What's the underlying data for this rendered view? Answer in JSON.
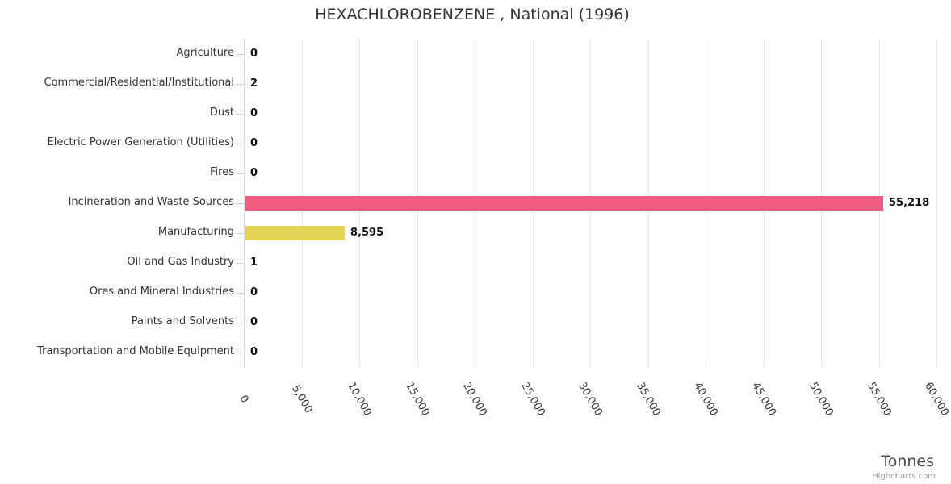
{
  "chart_data": {
    "type": "bar",
    "orientation": "horizontal",
    "title": "HEXACHLOROBENZENE , National (1996)",
    "categories": [
      "Agriculture",
      "Commercial/Residential/Institutional",
      "Dust",
      "Electric Power Generation (Utilities)",
      "Fires",
      "Incineration and Waste Sources",
      "Manufacturing",
      "Oil and Gas Industry",
      "Ores and Mineral Industries",
      "Paints and Solvents",
      "Transportation and Mobile Equipment"
    ],
    "values": [
      0,
      2,
      0,
      0,
      0,
      55218,
      8595,
      1,
      0,
      0,
      0
    ],
    "value_labels": [
      "0",
      "2",
      "0",
      "0",
      "0",
      "55,218",
      "8,595",
      "1",
      "0",
      "0",
      "0"
    ],
    "bar_colors": {
      "Incineration and Waste Sources": "#f15c80",
      "Manufacturing": "#e4d354"
    },
    "xlabel": "Tonnes",
    "xlim": [
      0,
      60000
    ],
    "tick_interval": 5000,
    "x_tick_labels": [
      "0",
      "5,000",
      "10,000",
      "15,000",
      "20,000",
      "25,000",
      "30,000",
      "35,000",
      "40,000",
      "45,000",
      "50,000",
      "55,000",
      "60,000"
    ],
    "grid": true,
    "legend": "none"
  },
  "styles": {
    "axis_line_color": "#ccd6eb",
    "gridline_color": "#e6e6e6",
    "category_label_color": "#333333",
    "value_label_color": "#111111",
    "title_color": "#333333",
    "axis_title_color": "#4d4d4d",
    "credits_color": "#999999"
  },
  "credits": {
    "label": "Highcharts.com"
  }
}
